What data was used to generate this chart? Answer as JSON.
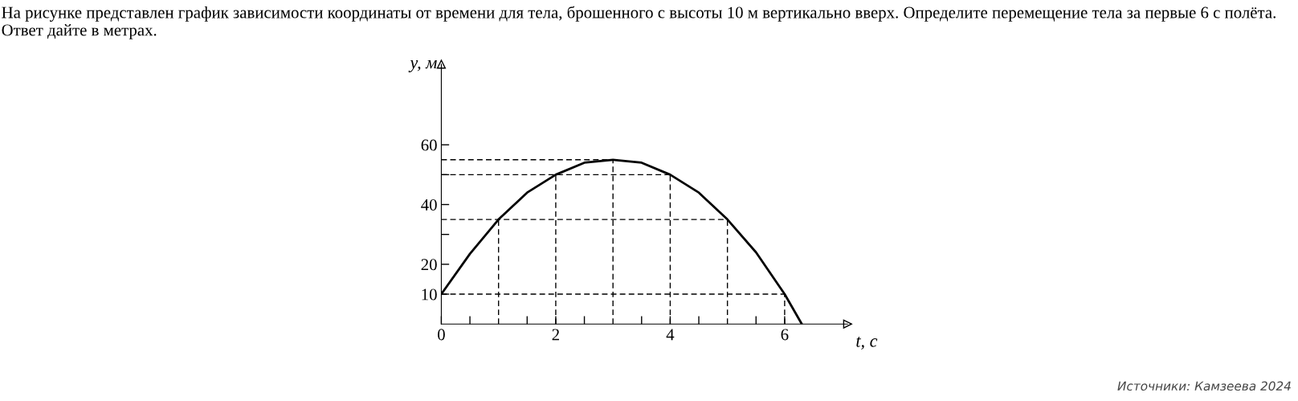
{
  "chart_data": {
    "type": "line",
    "title": "На рисунке представлен график зависимости координаты от времени для тела, брошенного с высоты 10 м вертикально вверх. Определите перемещение тела за первые 6 с полёта. Ответ дайте в метрах.",
    "xlabel": "t, с",
    "ylabel": "y, м",
    "series": [
      {
        "color": "#000000",
        "line_style": "solid",
        "x": [
          0,
          0.5,
          1,
          1.5,
          2,
          2.5,
          3,
          3.5,
          4,
          4.5,
          5,
          5.5,
          6,
          6.3
        ],
        "values": [
          10,
          23.5,
          35,
          44,
          50,
          54,
          55,
          54,
          50,
          44,
          35,
          24,
          10,
          0
        ]
      },
      {
        "color": "#000000",
        "line_style": "dashed",
        "x": [
          0,
          6
        ],
        "values": [
          10,
          10
        ]
      },
      {
        "color": "#000000",
        "line_style": "dashed",
        "x": [
          0,
          5
        ],
        "values": [
          35,
          35
        ]
      },
      {
        "color": "#000000",
        "line_style": "dashed",
        "x": [
          0,
          4
        ],
        "values": [
          50,
          50
        ]
      },
      {
        "color": "#000000",
        "line_style": "dashed",
        "x": [
          0,
          3
        ],
        "values": [
          55,
          55
        ]
      },
      {
        "color": "#000000",
        "line_style": "dashed",
        "x": [
          1,
          1
        ],
        "values": [
          0,
          35
        ]
      },
      {
        "color": "#000000",
        "line_style": "dashed",
        "x": [
          2,
          2
        ],
        "values": [
          0,
          50
        ]
      },
      {
        "color": "#000000",
        "line_style": "dashed",
        "x": [
          3,
          3
        ],
        "values": [
          0,
          55
        ]
      },
      {
        "color": "#000000",
        "line_style": "dashed",
        "x": [
          4,
          4
        ],
        "values": [
          0,
          50
        ]
      },
      {
        "color": "#000000",
        "line_style": "dashed",
        "x": [
          5,
          5
        ],
        "values": [
          0,
          35
        ]
      },
      {
        "color": "#000000",
        "line_style": "dashed",
        "x": [
          6,
          6
        ],
        "values": [
          0,
          10
        ]
      }
    ],
    "xlim": [
      0,
      7.1
    ],
    "ylim": [
      0,
      87
    ],
    "xticks": [
      0,
      {
        "value": 0.5,
        "label": null
      },
      {
        "value": 1.5,
        "label": null
      },
      2,
      {
        "value": 2.5,
        "label": null
      },
      {
        "value": 3.5,
        "label": null
      },
      4,
      {
        "value": 4.5,
        "label": null
      },
      {
        "value": 5.5,
        "label": null
      },
      6
    ],
    "yticks": [
      10,
      20,
      {
        "value": 30,
        "label": null
      },
      40,
      {
        "value": 50,
        "label": null
      },
      60
    ],
    "grid": false,
    "legend": false,
    "annotations": [
      "Источники: Камзеева 2024"
    ]
  }
}
